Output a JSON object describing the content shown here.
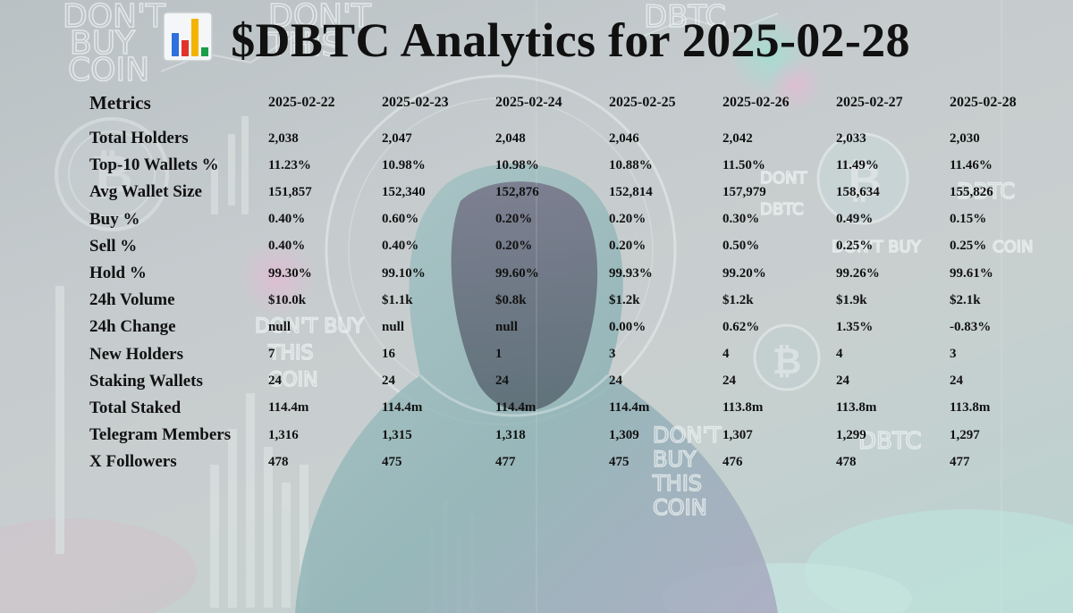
{
  "title": "$DBTC Analytics for 2025-02-28",
  "title_icon": "bar-chart-icon",
  "table": {
    "header_label": "Metrics",
    "dates": [
      "2025-02-22",
      "2025-02-23",
      "2025-02-24",
      "2025-02-25",
      "2025-02-26",
      "2025-02-27",
      "2025-02-28"
    ],
    "rows": [
      {
        "label": "Total Holders",
        "values": [
          "2,038",
          "2,047",
          "2,048",
          "2,046",
          "2,042",
          "2,033",
          "2,030"
        ]
      },
      {
        "label": "Top-10 Wallets %",
        "values": [
          "11.23%",
          "10.98%",
          "10.98%",
          "10.88%",
          "11.50%",
          "11.49%",
          "11.46%"
        ]
      },
      {
        "label": "Avg Wallet Size",
        "values": [
          "151,857",
          "152,340",
          "152,876",
          "152,814",
          "157,979",
          "158,634",
          "155,826"
        ]
      },
      {
        "label": "Buy %",
        "values": [
          "0.40%",
          "0.60%",
          "0.20%",
          "0.20%",
          "0.30%",
          "0.49%",
          "0.15%"
        ]
      },
      {
        "label": "Sell %",
        "values": [
          "0.40%",
          "0.40%",
          "0.20%",
          "0.20%",
          "0.50%",
          "0.25%",
          "0.25%"
        ]
      },
      {
        "label": "Hold %",
        "values": [
          "99.30%",
          "99.10%",
          "99.60%",
          "99.93%",
          "99.20%",
          "99.26%",
          "99.61%"
        ]
      },
      {
        "label": "24h Volume",
        "values": [
          "$10.0k",
          "$1.1k",
          "$0.8k",
          "$1.2k",
          "$1.2k",
          "$1.9k",
          "$2.1k"
        ]
      },
      {
        "label": "24h Change",
        "values": [
          "null",
          "null",
          "null",
          "0.00%",
          "0.62%",
          "1.35%",
          "-0.83%"
        ]
      },
      {
        "label": "New Holders",
        "values": [
          "7",
          "16",
          "1",
          "3",
          "4",
          "4",
          "3"
        ]
      },
      {
        "label": "Staking Wallets",
        "values": [
          "24",
          "24",
          "24",
          "24",
          "24",
          "24",
          "24"
        ]
      },
      {
        "label": "Total Staked",
        "values": [
          "114.4m",
          "114.4m",
          "114.4m",
          "114.4m",
          "113.8m",
          "113.8m",
          "113.8m"
        ]
      },
      {
        "label": "Telegram Members",
        "values": [
          "1,316",
          "1,315",
          "1,318",
          "1,309",
          "1,307",
          "1,299",
          "1,297"
        ]
      },
      {
        "label": "X Followers",
        "values": [
          "478",
          "475",
          "477",
          "475",
          "476",
          "478",
          "477"
        ]
      }
    ]
  },
  "background": {
    "texts": [
      "DON'T",
      "BUY",
      "COIN",
      "DON'T",
      "THIS",
      "DBTC",
      "DONT",
      "DBTC",
      "DBTC",
      "DON'T BUY",
      "COIN",
      "DON'T BUY",
      "THIS",
      "COIN",
      "DON'T",
      "BUY",
      "THIS",
      "COIN",
      "DBTC"
    ],
    "icons": [
      "bitcoin-coin-icon",
      "hooded-figure-icon"
    ]
  }
}
